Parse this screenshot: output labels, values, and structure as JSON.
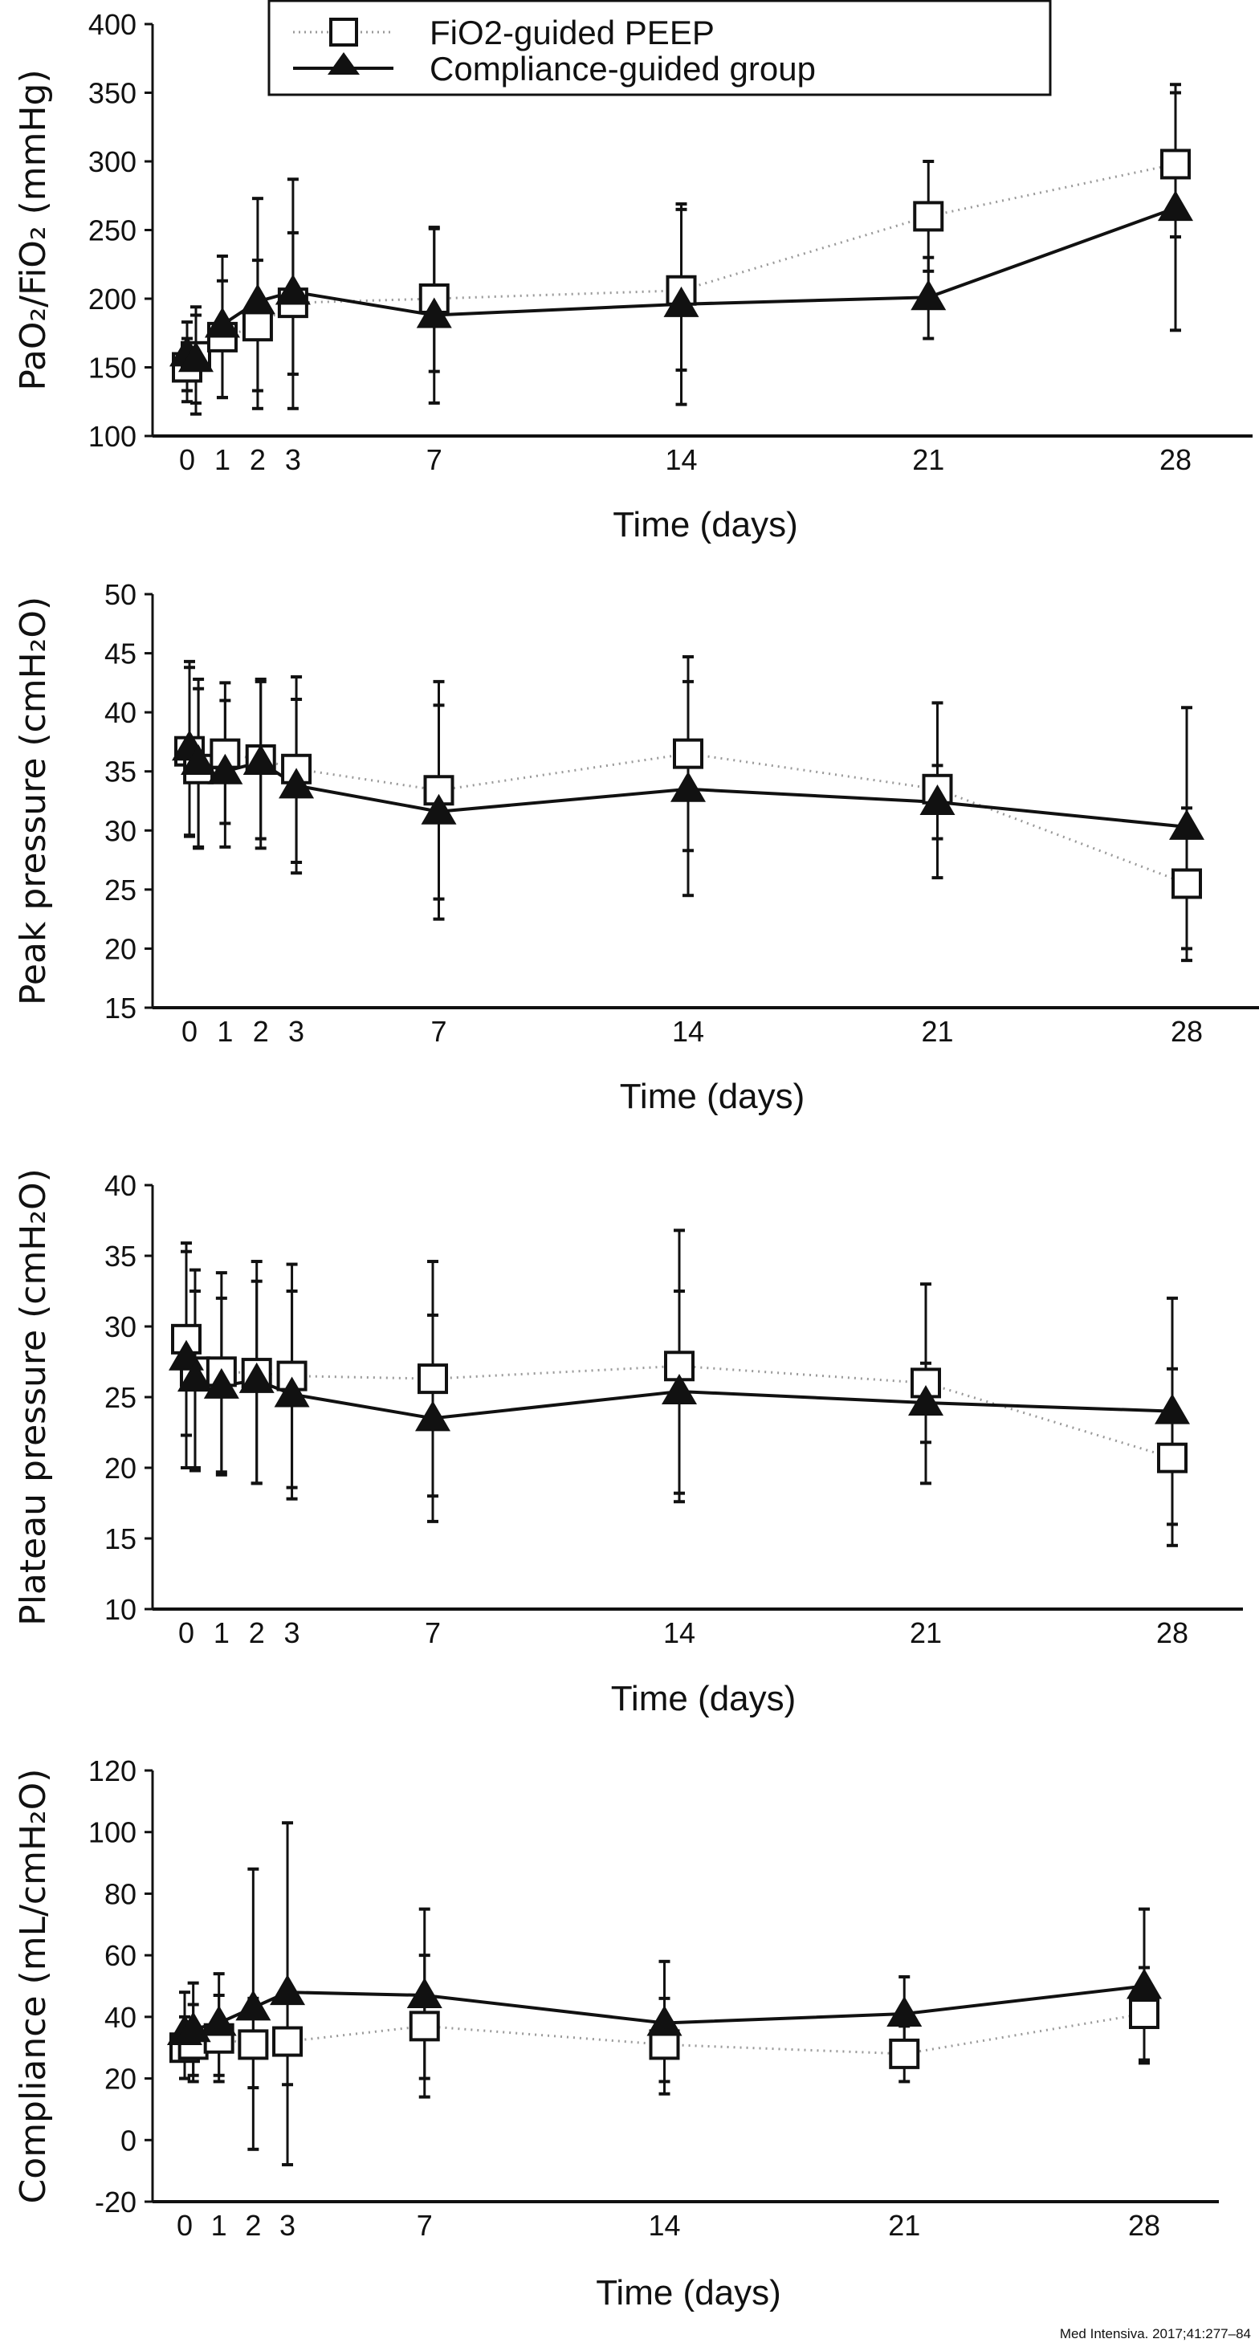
{
  "legend": {
    "series_a": "FiO2-guided PEEP",
    "series_b": "Compliance-guided group"
  },
  "citation": "Med Intensiva. 2017;41:277–84",
  "colors": {
    "fio2_line": "#9a9a9a",
    "compliance_line": "#111111",
    "marker_fill_a": "#ffffff",
    "marker_fill_b": "#111111"
  },
  "chart_data": [
    {
      "type": "line",
      "ylabel": "PaO₂/FiO₂ (mmHg)",
      "xlabel": "Time (days)",
      "ylim": [
        100,
        400
      ],
      "yticks": [
        100,
        150,
        200,
        250,
        300,
        350,
        400
      ],
      "xticks": [
        0,
        1,
        2,
        3,
        7,
        14,
        21,
        28
      ],
      "grid": false,
      "legend_position": "top",
      "x": [
        0,
        0.25,
        1,
        2,
        3,
        7,
        14,
        21,
        28
      ],
      "series": [
        {
          "name": "FiO2-guided PEEP",
          "marker": "open-square",
          "line": "dotted",
          "values": [
            150,
            158,
            172,
            180,
            197,
            200,
            206,
            260,
            298
          ],
          "error_low": [
            133,
            124,
            128,
            133,
            145,
            147,
            148,
            220,
            245
          ],
          "error_high": [
            183,
            188,
            213,
            228,
            248,
            252,
            269,
            300,
            350
          ]
        },
        {
          "name": "Compliance-guided group",
          "marker": "filled-triangle",
          "line": "solid",
          "values": [
            160,
            156,
            181,
            198,
            205,
            188,
            196,
            201,
            266
          ],
          "error_low": [
            125,
            116,
            128,
            120,
            120,
            124,
            123,
            171,
            177
          ],
          "error_high": [
            171,
            194,
            231,
            273,
            287,
            251,
            265,
            230,
            356
          ]
        }
      ]
    },
    {
      "type": "line",
      "ylabel": "Peak pressure (cmH₂O)",
      "xlabel": "Time (days)",
      "ylim": [
        15,
        50
      ],
      "yticks": [
        15,
        20,
        25,
        30,
        35,
        40,
        45,
        50
      ],
      "xticks": [
        0,
        1,
        2,
        3,
        7,
        14,
        21,
        28
      ],
      "grid": false,
      "x": [
        0,
        0.25,
        1,
        2,
        3,
        7,
        14,
        21,
        28
      ],
      "series": [
        {
          "name": "FiO2-guided PEEP",
          "marker": "open-square",
          "line": "dotted",
          "values": [
            36.7,
            35.2,
            36.5,
            36.0,
            35.2,
            33.4,
            36.5,
            33.5,
            25.5
          ],
          "error_low": [
            29.5,
            28.6,
            30.6,
            29.3,
            27.3,
            24.2,
            28.3,
            29.3,
            20.0
          ],
          "error_high": [
            43.8,
            42.0,
            41.0,
            42.6,
            41.1,
            40.6,
            42.6,
            35.5,
            31.9
          ]
        },
        {
          "name": "Compliance-guided group",
          "marker": "filled-triangle",
          "line": "solid",
          "values": [
            37.0,
            35.8,
            35.0,
            35.8,
            33.8,
            31.6,
            33.5,
            32.4,
            30.3
          ],
          "error_low": [
            29.6,
            28.5,
            28.6,
            28.5,
            26.4,
            22.5,
            24.5,
            26.0,
            19.0
          ],
          "error_high": [
            44.3,
            42.8,
            42.5,
            42.8,
            43.0,
            42.6,
            44.7,
            40.8,
            40.4
          ]
        }
      ]
    },
    {
      "type": "line",
      "ylabel": "Plateau pressure (cmH₂O)",
      "xlabel": "Time (days)",
      "ylim": [
        10,
        40
      ],
      "yticks": [
        10,
        15,
        20,
        25,
        30,
        35,
        40
      ],
      "xticks": [
        0,
        1,
        2,
        3,
        7,
        14,
        21,
        28
      ],
      "grid": false,
      "x": [
        0,
        0.25,
        1,
        2,
        3,
        7,
        14,
        21,
        28
      ],
      "series": [
        {
          "name": "FiO2-guided PEEP",
          "marker": "open-square",
          "line": "dotted",
          "values": [
            29.1,
            26.8,
            26.8,
            26.7,
            26.5,
            26.3,
            27.2,
            26.0,
            20.7
          ],
          "error_low": [
            22.3,
            20.0,
            19.5,
            18.9,
            18.6,
            18.0,
            18.2,
            21.8,
            16.0
          ],
          "error_high": [
            35.9,
            34.0,
            32.0,
            33.2,
            32.5,
            30.8,
            32.5,
            27.4,
            27.0
          ]
        },
        {
          "name": "Compliance-guided group",
          "marker": "filled-triangle",
          "line": "solid",
          "values": [
            27.8,
            26.3,
            25.8,
            26.2,
            25.2,
            23.5,
            25.4,
            24.6,
            24.0
          ],
          "error_low": [
            20.0,
            19.8,
            19.7,
            18.9,
            17.8,
            16.2,
            17.6,
            18.9,
            14.5
          ],
          "error_high": [
            35.3,
            32.5,
            33.8,
            34.6,
            34.4,
            34.6,
            36.8,
            33.0,
            32.0
          ]
        }
      ]
    },
    {
      "type": "line",
      "ylabel": "Compliance (mL/cmH₂O)",
      "xlabel": "Time (days)",
      "ylim": [
        -20,
        120
      ],
      "yticks": [
        -20,
        0,
        20,
        40,
        60,
        80,
        100,
        120
      ],
      "xticks": [
        0,
        1,
        2,
        3,
        7,
        14,
        21,
        28
      ],
      "grid": false,
      "x": [
        0,
        0.25,
        1,
        2,
        3,
        7,
        14,
        21,
        28
      ],
      "series": [
        {
          "name": "FiO2-guided PEEP",
          "marker": "open-square",
          "line": "dotted",
          "values": [
            30,
            31,
            33,
            31,
            32,
            37,
            31,
            28,
            41
          ],
          "error_low": [
            20,
            21,
            21,
            17,
            18,
            20,
            19,
            19,
            26
          ],
          "error_high": [
            48,
            44,
            47,
            46,
            45,
            60,
            46,
            37,
            56
          ]
        },
        {
          "name": "Compliance-guided group",
          "marker": "filled-triangle",
          "line": "solid",
          "values": [
            35,
            36,
            38,
            43,
            48,
            47,
            38,
            41,
            50
          ],
          "error_low": [
            20,
            19,
            19,
            -3,
            -8,
            14,
            15,
            28,
            25
          ],
          "error_high": [
            40,
            51,
            54,
            88,
            103,
            75,
            58,
            53,
            75
          ]
        }
      ]
    }
  ]
}
